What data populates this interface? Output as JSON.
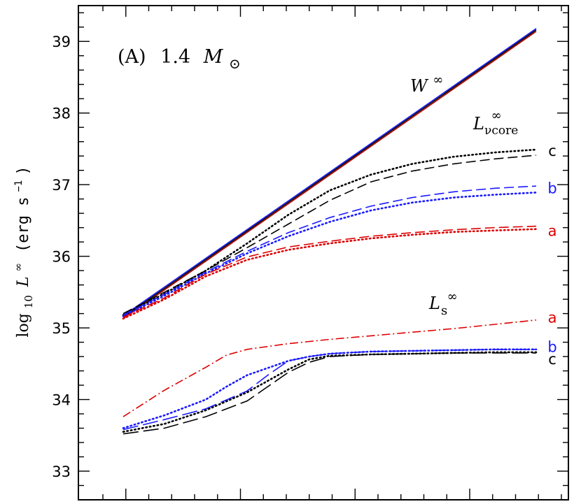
{
  "chart_data": {
    "type": "line",
    "panel_label": "(A)",
    "mass_label": "1.4",
    "mass_unit_symbol": "M",
    "mass_unit_subscript": "⊙",
    "ylabel": {
      "prefix": "log",
      "sub": "10",
      "var": "L",
      "sup": "∞",
      "unit": "(erg s",
      "unit_exp": "−1",
      "unit_close": ")"
    },
    "ylim": [
      32.6,
      39.5
    ],
    "yticks": [
      33,
      34,
      35,
      36,
      37,
      38,
      39
    ],
    "ytick_labels": [
      "33",
      "34",
      "35",
      "36",
      "37",
      "38",
      "39"
    ],
    "xlim": [
      0,
      1
    ],
    "x_ticks_count": 21,
    "grid": false,
    "annotations": {
      "W": {
        "base": "W",
        "sup": "∞"
      },
      "Lcore": {
        "base": "L",
        "sup": "∞",
        "sub": "νcore"
      },
      "Ls": {
        "base": "L",
        "sup": "∞",
        "sub": "s"
      }
    },
    "series": [
      {
        "group": "W",
        "style": "solid",
        "color": "#1a1aff",
        "x": [
          0,
          1
        ],
        "y": [
          35.17,
          39.18
        ]
      },
      {
        "group": "W",
        "style": "solid",
        "color": "#b00000",
        "x": [
          0,
          1
        ],
        "y": [
          35.13,
          39.14
        ]
      },
      {
        "group": "W",
        "style": "solid",
        "color": "#000000",
        "x": [
          0,
          1
        ],
        "y": [
          35.15,
          39.16
        ]
      },
      {
        "group": "Lcore",
        "case": "c",
        "style": "dotted",
        "color": "#000000",
        "x": [
          0,
          0.1,
          0.2,
          0.3,
          0.4,
          0.5,
          0.6,
          0.7,
          0.8,
          0.9,
          1.0
        ],
        "y": [
          35.18,
          35.48,
          35.8,
          36.18,
          36.58,
          36.92,
          37.14,
          37.29,
          37.39,
          37.45,
          37.49
        ]
      },
      {
        "group": "Lcore",
        "case": "c",
        "style": "dashed",
        "color": "#000000",
        "x": [
          0,
          0.1,
          0.2,
          0.3,
          0.4,
          0.5,
          0.6,
          0.7,
          0.8,
          0.9,
          1.0
        ],
        "y": [
          35.2,
          35.5,
          35.8,
          36.12,
          36.45,
          36.78,
          37.04,
          37.19,
          37.29,
          37.36,
          37.41
        ]
      },
      {
        "group": "Lcore",
        "case": "b",
        "style": "dashed",
        "color": "#1a1aff",
        "x": [
          0,
          0.1,
          0.2,
          0.3,
          0.4,
          0.5,
          0.6,
          0.7,
          0.8,
          0.9,
          1.0
        ],
        "y": [
          35.18,
          35.47,
          35.78,
          36.07,
          36.33,
          36.54,
          36.7,
          36.82,
          36.9,
          36.95,
          36.98
        ]
      },
      {
        "group": "Lcore",
        "case": "b",
        "style": "dotted",
        "color": "#1a1aff",
        "x": [
          0,
          0.1,
          0.2,
          0.3,
          0.4,
          0.5,
          0.6,
          0.7,
          0.8,
          0.9,
          1.0
        ],
        "y": [
          35.16,
          35.45,
          35.76,
          36.04,
          36.28,
          36.48,
          36.64,
          36.75,
          36.82,
          36.86,
          36.89
        ]
      },
      {
        "group": "Lcore",
        "case": "a",
        "style": "dashed",
        "color": "#dd0000",
        "x": [
          0,
          0.1,
          0.2,
          0.3,
          0.4,
          0.5,
          0.6,
          0.7,
          0.8,
          0.9,
          1.0
        ],
        "y": [
          35.15,
          35.42,
          35.75,
          35.99,
          36.13,
          36.21,
          36.28,
          36.33,
          36.37,
          36.4,
          36.42
        ]
      },
      {
        "group": "Lcore",
        "case": "a",
        "style": "dotted",
        "color": "#dd0000",
        "x": [
          0,
          0.1,
          0.2,
          0.3,
          0.4,
          0.5,
          0.6,
          0.7,
          0.8,
          0.9,
          1.0
        ],
        "y": [
          35.13,
          35.4,
          35.72,
          35.95,
          36.09,
          36.18,
          36.25,
          36.3,
          36.34,
          36.36,
          36.38
        ]
      },
      {
        "group": "Ls",
        "case": "a",
        "style": "dashdot",
        "color": "#dd0000",
        "x": [
          0,
          0.1,
          0.2,
          0.25,
          0.3,
          0.4,
          0.5,
          0.6,
          0.7,
          0.8,
          0.9,
          1.0
        ],
        "y": [
          33.76,
          34.13,
          34.45,
          34.62,
          34.7,
          34.78,
          34.84,
          34.89,
          34.94,
          34.99,
          35.05,
          35.11
        ]
      },
      {
        "group": "Ls",
        "case": "b",
        "style": "dotted",
        "color": "#1a1aff",
        "x": [
          0,
          0.1,
          0.2,
          0.25,
          0.3,
          0.4,
          0.45,
          0.5,
          0.6,
          0.7,
          0.8,
          0.9,
          1.0
        ],
        "y": [
          33.6,
          33.78,
          34.0,
          34.18,
          34.34,
          34.54,
          34.6,
          34.64,
          34.67,
          34.68,
          34.69,
          34.7,
          34.7
        ]
      },
      {
        "group": "Ls",
        "case": "b",
        "style": "longdash",
        "color": "#1a1aff",
        "x": [
          0,
          0.1,
          0.2,
          0.3,
          0.35,
          0.4,
          0.45,
          0.5,
          0.6,
          0.7,
          0.8,
          0.9,
          1.0
        ],
        "y": [
          33.58,
          33.72,
          33.87,
          34.12,
          34.34,
          34.54,
          34.6,
          34.64,
          34.67,
          34.68,
          34.69,
          34.7,
          34.7
        ]
      },
      {
        "group": "Ls",
        "case": "c",
        "style": "dotted",
        "color": "#000000",
        "x": [
          0,
          0.1,
          0.2,
          0.3,
          0.4,
          0.45,
          0.5,
          0.6,
          0.7,
          0.8,
          0.9,
          1.0
        ],
        "y": [
          33.55,
          33.66,
          33.85,
          34.1,
          34.42,
          34.56,
          34.61,
          34.63,
          34.64,
          34.65,
          34.66,
          34.66
        ]
      },
      {
        "group": "Ls",
        "case": "c",
        "style": "longdash",
        "color": "#000000",
        "x": [
          0,
          0.1,
          0.2,
          0.3,
          0.35,
          0.4,
          0.45,
          0.5,
          0.6,
          0.7,
          0.8,
          0.9,
          1.0
        ],
        "y": [
          33.52,
          33.6,
          33.76,
          33.98,
          34.18,
          34.38,
          34.52,
          34.6,
          34.63,
          34.64,
          34.65,
          34.65,
          34.65
        ]
      }
    ],
    "case_labels": [
      {
        "text": "c",
        "color": "#000000",
        "y": 37.48
      },
      {
        "text": "b",
        "color": "#1a1aff",
        "y": 36.96
      },
      {
        "text": "a",
        "color": "#dd0000",
        "y": 36.36
      },
      {
        "text": "a",
        "color": "#dd0000",
        "y": 35.15
      },
      {
        "text": "b",
        "color": "#1a1aff",
        "y": 34.74
      },
      {
        "text": "c",
        "color": "#000000",
        "y": 34.57
      }
    ]
  }
}
